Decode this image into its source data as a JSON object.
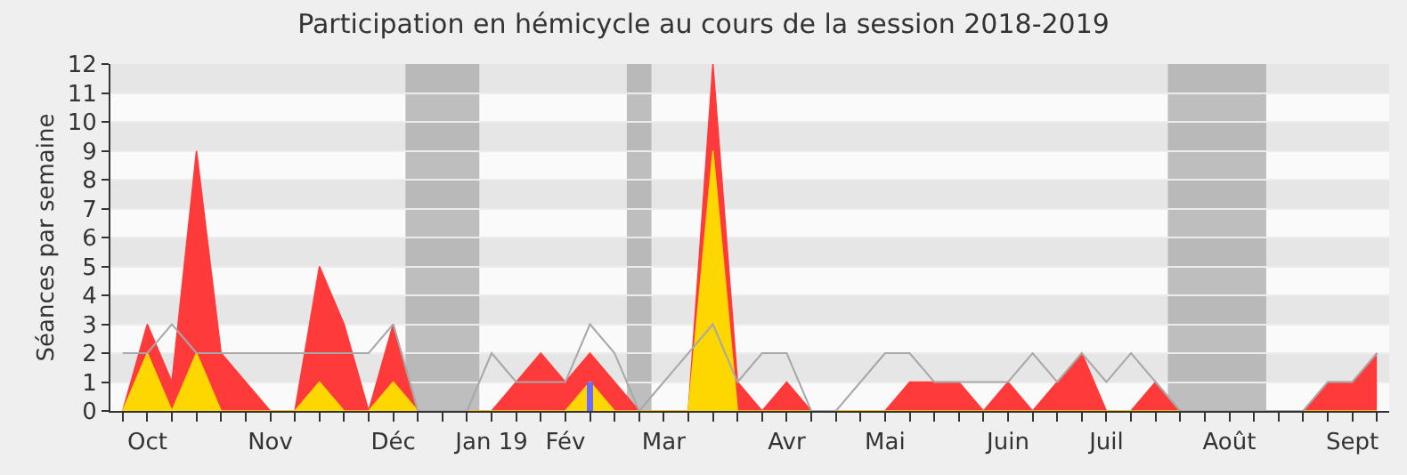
{
  "chart_data": {
    "type": "area",
    "title": "Participation en hémicycle au cours de la session 2018-2019",
    "ylabel": "Séances par semaine",
    "categories": [
      null,
      "Oct",
      null,
      null,
      null,
      null,
      "Nov",
      null,
      null,
      null,
      null,
      "Déc",
      null,
      null,
      null,
      "Jan 19",
      null,
      null,
      "Fév",
      null,
      null,
      null,
      "Mar",
      null,
      null,
      null,
      null,
      "Avr",
      null,
      null,
      null,
      "Mai",
      null,
      null,
      null,
      null,
      "Juin",
      null,
      null,
      null,
      "Juil",
      null,
      null,
      null,
      null,
      "Août",
      null,
      null,
      null,
      null,
      "Sept",
      null
    ],
    "series": [
      {
        "color": "#ff3a3a",
        "values": [
          0,
          3,
          1,
          9,
          2,
          1,
          0,
          0,
          5,
          3,
          0,
          3,
          0,
          0,
          0,
          0,
          1,
          2,
          1,
          2,
          1,
          0,
          0,
          0,
          12,
          1,
          0,
          1,
          0,
          0,
          0,
          0,
          1,
          1,
          1,
          0,
          1,
          0,
          1,
          2,
          0,
          0,
          1,
          0,
          0,
          0,
          0,
          0,
          0,
          1,
          1,
          2
        ]
      },
      {
        "color": "#ffd700",
        "values": [
          0,
          2,
          0,
          2,
          0,
          0,
          0,
          0,
          1,
          0,
          0,
          1,
          0,
          0,
          0,
          0,
          0,
          0,
          0,
          1,
          0,
          0,
          0,
          0,
          9,
          0,
          0,
          0,
          0,
          0,
          0,
          0,
          0,
          0,
          0,
          0,
          0,
          0,
          0,
          0,
          0,
          0,
          0,
          0,
          0,
          0,
          0,
          0,
          0,
          0,
          0,
          0
        ]
      },
      {
        "type": "line",
        "color": "#a8a8a8",
        "values": [
          2,
          2,
          3,
          2,
          2,
          2,
          2,
          2,
          2,
          2,
          2,
          3,
          0,
          0,
          0,
          2,
          1,
          1,
          1,
          3,
          2,
          0,
          1,
          2,
          3,
          1,
          2,
          2,
          0,
          0,
          1,
          2,
          2,
          1,
          1,
          1,
          1,
          2,
          1,
          2,
          1,
          2,
          1,
          0,
          0,
          0,
          0,
          0,
          0,
          1,
          1,
          2
        ]
      },
      {
        "type": "bar",
        "color": "#6a6aff",
        "values": [
          null,
          null,
          null,
          null,
          null,
          null,
          null,
          null,
          null,
          null,
          null,
          null,
          null,
          null,
          null,
          null,
          null,
          null,
          null,
          1,
          null,
          null,
          null,
          null,
          null,
          null,
          null,
          null,
          null,
          null,
          null,
          null,
          null,
          null,
          null,
          null,
          null,
          null,
          null,
          null,
          null,
          null,
          null,
          null,
          null,
          null,
          null,
          null,
          null,
          null,
          null,
          null
        ]
      }
    ],
    "ylim": [
      0,
      12
    ],
    "yticks": [
      0,
      1,
      2,
      3,
      4,
      5,
      6,
      7,
      8,
      9,
      10,
      11,
      12
    ],
    "grid": "y",
    "legend": false,
    "marker": "none"
  }
}
